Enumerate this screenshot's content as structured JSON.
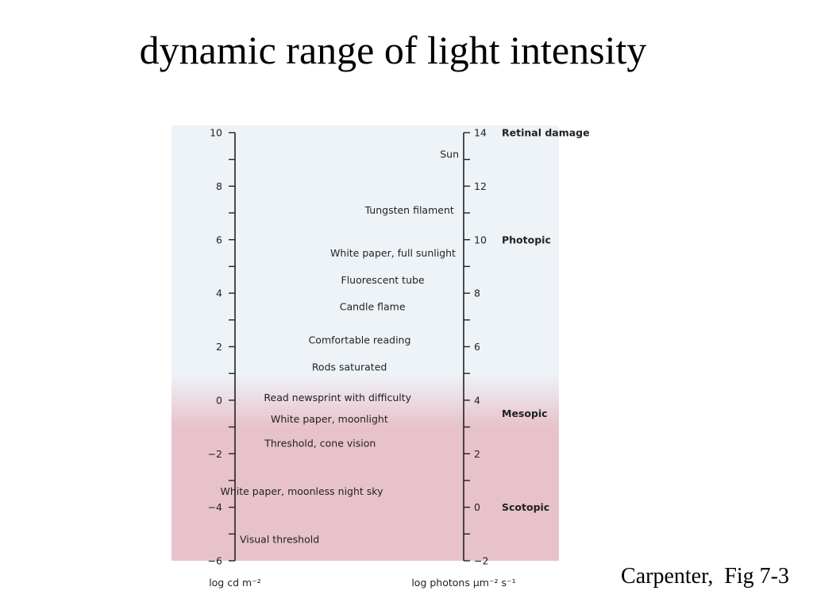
{
  "slide": {
    "title": "dynamic range of light intensity",
    "citation": "Carpenter,  Fig 7-3"
  },
  "diagram": {
    "left_axis": {
      "unit": "log cd m⁻²",
      "ticks": [
        {
          "value": 10,
          "label": "10"
        },
        {
          "value": 8,
          "label": "8"
        },
        {
          "value": 6,
          "label": "6"
        },
        {
          "value": 4,
          "label": "4"
        },
        {
          "value": 2,
          "label": "2"
        },
        {
          "value": 0,
          "label": "0"
        },
        {
          "value": -2,
          "label": "−2"
        },
        {
          "value": -4,
          "label": "−4"
        },
        {
          "value": -6,
          "label": "−6"
        }
      ]
    },
    "right_axis": {
      "unit": "log photons µm⁻² s⁻¹",
      "ticks": [
        {
          "value": 14,
          "label": "14"
        },
        {
          "value": 12,
          "label": "12"
        },
        {
          "value": 10,
          "label": "10"
        },
        {
          "value": 8,
          "label": "8"
        },
        {
          "value": 6,
          "label": "6"
        },
        {
          "value": 4,
          "label": "4"
        },
        {
          "value": 2,
          "label": "2"
        },
        {
          "value": 0,
          "label": "0"
        },
        {
          "value": -2,
          "label": "−2"
        }
      ]
    },
    "light_levels": [
      {
        "label": "Sun",
        "value": 9.2
      },
      {
        "label": "Tungsten filament",
        "value": 7.1
      },
      {
        "label": "White paper, full sunlight",
        "value": 5.5
      },
      {
        "label": "Fluorescent tube",
        "value": 4.5
      },
      {
        "label": "Candle flame",
        "value": 3.5
      },
      {
        "label": "Comfortable reading",
        "value": 2.25
      },
      {
        "label": "Rods saturated",
        "value": 1.25
      },
      {
        "label": "Read newsprint with difficulty",
        "value": 0.1
      },
      {
        "label": "White paper, moonlight",
        "value": -0.7
      },
      {
        "label": "Threshold, cone vision",
        "value": -1.6
      },
      {
        "label": "White paper, moonless night sky",
        "value": -3.4
      },
      {
        "label": "Visual threshold",
        "value": -5.2
      }
    ],
    "regimes": [
      {
        "label": "Retinal damage",
        "value": 14
      },
      {
        "label": "Photopic",
        "value": 10
      },
      {
        "label": "Mesopic",
        "value": 3.5
      },
      {
        "label": "Scotopic",
        "value": 0
      }
    ],
    "shading": {
      "pink_color": "#e8c2cb",
      "mesopic_top_right_value": 5,
      "scotopic_top_right_value": 3
    }
  }
}
